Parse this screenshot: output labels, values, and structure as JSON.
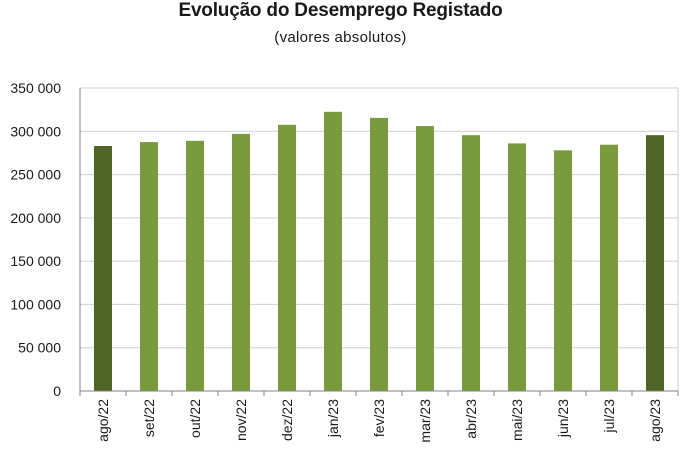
{
  "chart_data": {
    "type": "bar",
    "title": "Evolução do Desemprego Registado",
    "subtitle": "(valores absolutos)",
    "categories": [
      "ago/22",
      "set/22",
      "out/22",
      "nov/22",
      "dez/22",
      "jan/23",
      "fev/23",
      "mar/23",
      "abr/23",
      "mai/23",
      "jun/23",
      "jul/23",
      "ago/23"
    ],
    "values": [
      283000,
      287500,
      289000,
      297000,
      307500,
      322500,
      315500,
      306000,
      295500,
      286000,
      278000,
      284500,
      295500
    ],
    "ylim": [
      0,
      350000
    ],
    "yticks": [
      0,
      50000,
      100000,
      150000,
      200000,
      250000,
      300000,
      350000
    ],
    "ytick_labels": [
      "0",
      "50 000",
      "100 000",
      "150 000",
      "200 000",
      "250 000",
      "300 000",
      "350 000"
    ],
    "grid": true,
    "colors": {
      "bar": "#7a9a3e",
      "bar_highlight": "#4e6526",
      "grid": "#cfcfcf",
      "axis": "#808080"
    },
    "highlighted": [
      "ago/22",
      "ago/23"
    ]
  }
}
